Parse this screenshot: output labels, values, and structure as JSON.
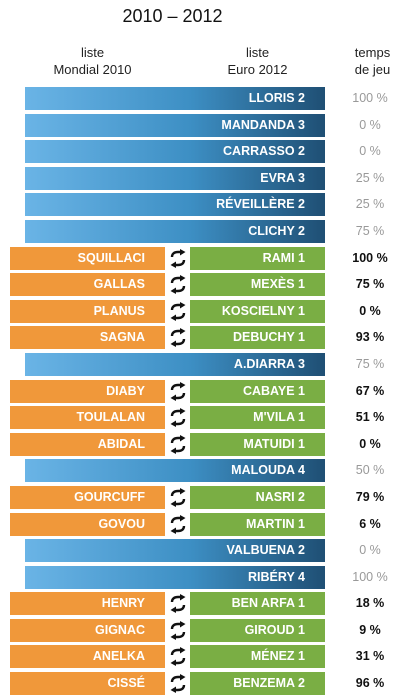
{
  "title": "2010 – 2012",
  "headers": {
    "left_line1": "liste",
    "left_line2": "Mondial 2010",
    "mid_line1": "liste",
    "mid_line2": "Euro 2012",
    "right_line1": "temps",
    "right_line2": "de jeu"
  },
  "colors": {
    "kept": "#3d8fc4",
    "replaced": "#f0983a",
    "replacement": "#7aae44"
  },
  "rows": [
    {
      "kind": "kept",
      "new": "LLORIS 2",
      "pct": "100 %"
    },
    {
      "kind": "kept",
      "new": "MANDANDA 3",
      "pct": "0 %"
    },
    {
      "kind": "kept",
      "new": "CARRASSO 2",
      "pct": "0 %"
    },
    {
      "kind": "kept",
      "new": "EVRA 3",
      "pct": "25 %"
    },
    {
      "kind": "kept",
      "new": "RÉVEILLÈRE 2",
      "pct": "25 %"
    },
    {
      "kind": "kept",
      "new": "CLICHY 2",
      "pct": "75 %"
    },
    {
      "kind": "swap",
      "old": "SQUILLACI",
      "new": "RAMI 1",
      "pct": "100 %"
    },
    {
      "kind": "swap",
      "old": "GALLAS",
      "new": "MEXÈS 1",
      "pct": "75 %"
    },
    {
      "kind": "swap",
      "old": "PLANUS",
      "new": "KOSCIELNY 1",
      "pct": "0 %"
    },
    {
      "kind": "swap",
      "old": "SAGNA",
      "new": "DEBUCHY 1",
      "pct": "93 %"
    },
    {
      "kind": "kept",
      "new": "A.DIARRA 3",
      "pct": "75 %"
    },
    {
      "kind": "swap",
      "old": "DIABY",
      "new": "CABAYE 1",
      "pct": "67 %"
    },
    {
      "kind": "swap",
      "old": "TOULALAN",
      "new": "M'VILA 1",
      "pct": "51 %"
    },
    {
      "kind": "swap",
      "old": "ABIDAL",
      "new": "MATUIDI 1",
      "pct": "0 %"
    },
    {
      "kind": "kept",
      "new": "MALOUDA 4",
      "pct": "50 %"
    },
    {
      "kind": "swap",
      "old": "GOURCUFF",
      "new": "NASRI 2",
      "pct": "79 %"
    },
    {
      "kind": "swap",
      "old": "GOVOU",
      "new": "MARTIN 1",
      "pct": "6 %"
    },
    {
      "kind": "kept",
      "new": "VALBUENA 2",
      "pct": "0 %"
    },
    {
      "kind": "kept",
      "new": "RIBÉRY 4",
      "pct": "100 %"
    },
    {
      "kind": "swap",
      "old": "HENRY",
      "new": "BEN ARFA 1",
      "pct": "18 %"
    },
    {
      "kind": "swap",
      "old": "GIGNAC",
      "new": "GIROUD 1",
      "pct": "9 %"
    },
    {
      "kind": "swap",
      "old": "ANELKA",
      "new": "MÉNEZ 1",
      "pct": "31 %"
    },
    {
      "kind": "swap",
      "old": "CISSÉ",
      "new": "BENZEMA 2",
      "pct": "96 %"
    }
  ]
}
